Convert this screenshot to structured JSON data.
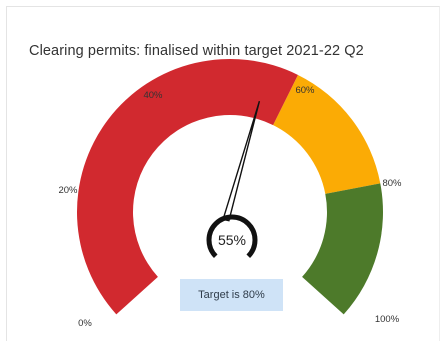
{
  "title": "Clearing permits: finalised within target 2021-22 Q2",
  "chart_data": {
    "type": "gauge",
    "title": "Clearing permits: finalised within target 2021-22 Q2",
    "value": 55,
    "value_label": "55%",
    "min": 0,
    "max": 100,
    "bands": [
      {
        "from": 0,
        "to": 60,
        "color": "#d1292f"
      },
      {
        "from": 60,
        "to": 80,
        "color": "#fbab05"
      },
      {
        "from": 80,
        "to": 100,
        "color": "#4d7a2a"
      }
    ],
    "ticks": [
      {
        "value": 0,
        "label": "0%"
      },
      {
        "value": 20,
        "label": "20%"
      },
      {
        "value": 40,
        "label": "40%"
      },
      {
        "value": 60,
        "label": "60%"
      },
      {
        "value": 80,
        "label": "80%"
      },
      {
        "value": 100,
        "label": "100%"
      }
    ],
    "target_text": "Target is 80%"
  }
}
